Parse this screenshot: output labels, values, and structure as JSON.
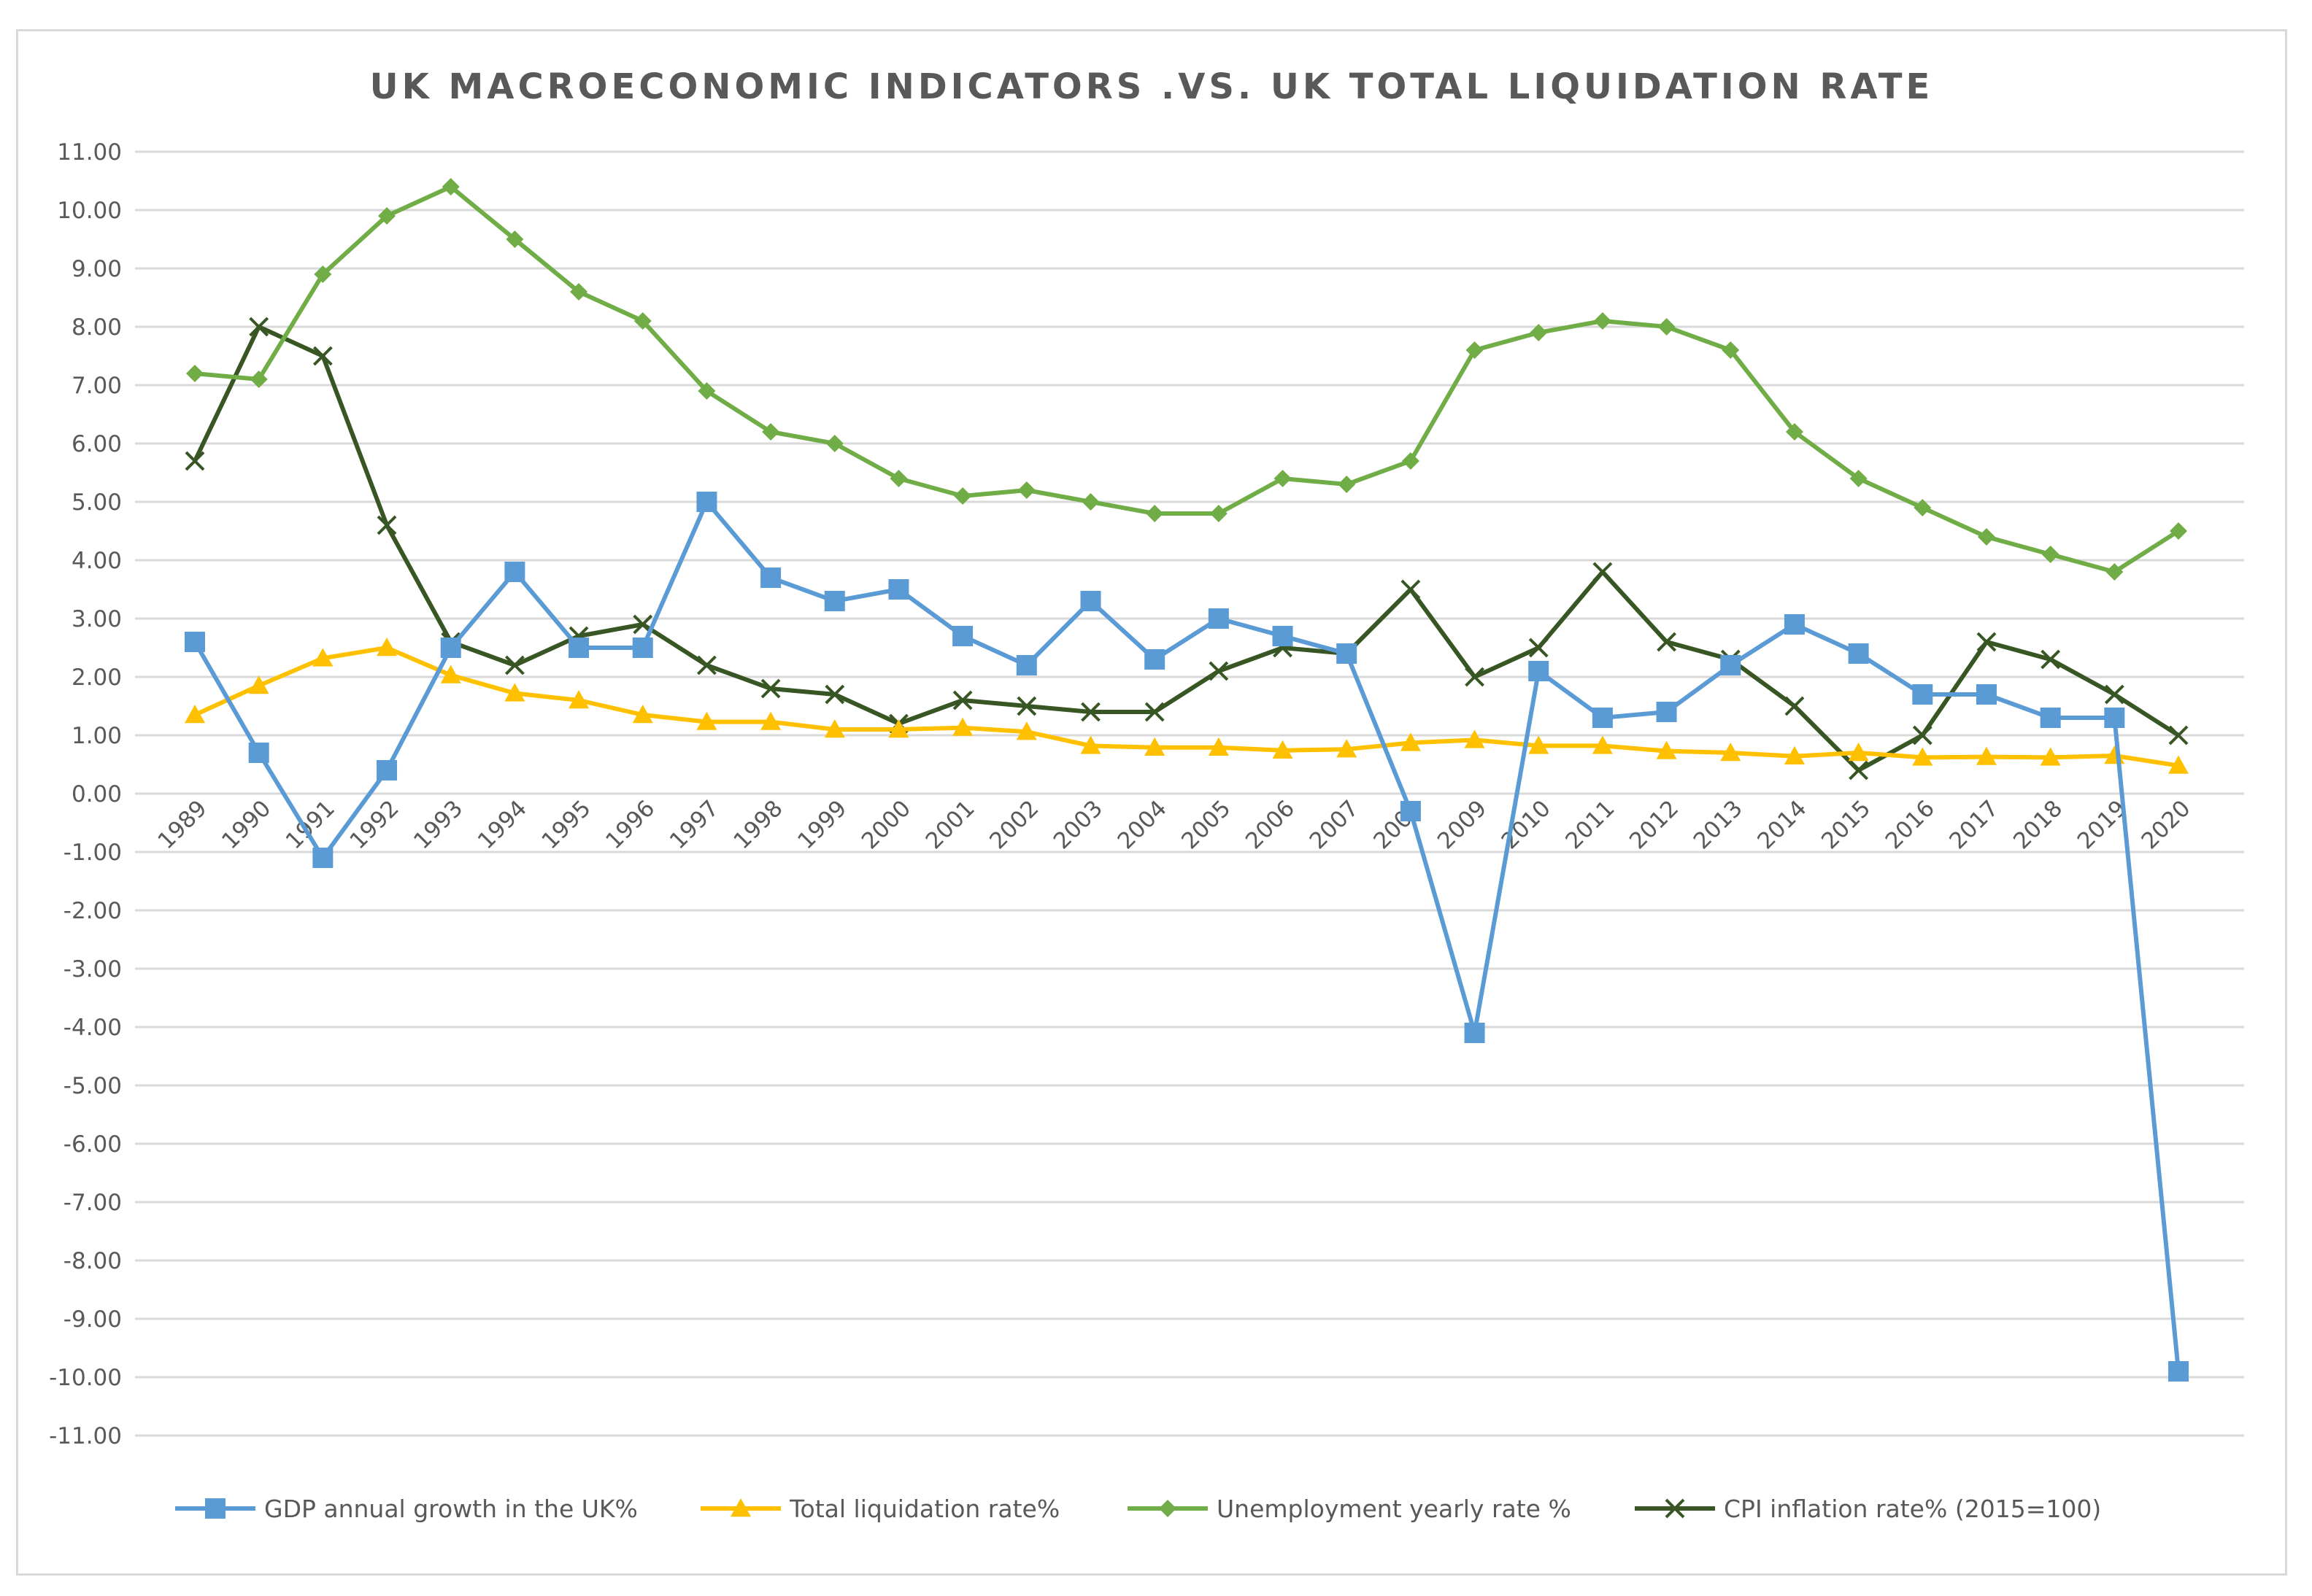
{
  "chart_data": {
    "type": "line",
    "title": "UK MACROECONOMIC INDICATORS .VS. UK TOTAL LIQUIDATION RATE",
    "xlabel": "",
    "ylabel": "",
    "ylim": [
      -11,
      11
    ],
    "y_ticks": [
      11,
      10,
      9,
      8,
      7,
      6,
      5,
      4,
      3,
      2,
      1,
      0,
      -1,
      -2,
      -3,
      -4,
      -5,
      -6,
      -7,
      -8,
      -9,
      -10,
      -11
    ],
    "y_tick_labels": [
      "11.00",
      "10.00",
      "9.00",
      "8.00",
      "7.00",
      "6.00",
      "5.00",
      "4.00",
      "3.00",
      "2.00",
      "1.00",
      "0.00",
      "-1.00",
      "-2.00",
      "-3.00",
      "-4.00",
      "-5.00",
      "-6.00",
      "-7.00",
      "-8.00",
      "-9.00",
      "-10.00",
      "-11.00"
    ],
    "grid": true,
    "legend_position": "bottom",
    "categories": [
      "1989",
      "1990",
      "1991",
      "1992",
      "1993",
      "1994",
      "1995",
      "1996",
      "1997",
      "1998",
      "1999",
      "2000",
      "2001",
      "2002",
      "2003",
      "2004",
      "2005",
      "2006",
      "2007",
      "2008",
      "2009",
      "2010",
      "2011",
      "2012",
      "2013",
      "2014",
      "2015",
      "2016",
      "2017",
      "2018",
      "2019",
      "2020"
    ],
    "series": [
      {
        "name": "GDP annual growth in the UK%",
        "color": "#5b9bd5",
        "marker": "square",
        "values": [
          2.6,
          0.7,
          -1.1,
          0.4,
          2.5,
          3.8,
          2.5,
          2.5,
          5.0,
          3.7,
          3.3,
          3.5,
          2.7,
          2.2,
          3.3,
          2.3,
          3.0,
          2.7,
          2.4,
          -0.3,
          -4.1,
          2.1,
          1.3,
          1.4,
          2.2,
          2.9,
          2.4,
          1.7,
          1.7,
          1.3,
          1.3,
          -9.9
        ]
      },
      {
        "name": "Total liquidation rate%",
        "color": "#ffc000",
        "marker": "triangle",
        "values": [
          1.35,
          1.85,
          2.32,
          2.5,
          2.03,
          1.72,
          1.6,
          1.35,
          1.23,
          1.23,
          1.1,
          1.1,
          1.13,
          1.06,
          0.82,
          0.79,
          0.79,
          0.74,
          0.76,
          0.87,
          0.92,
          0.82,
          0.82,
          0.73,
          0.7,
          0.64,
          0.7,
          0.62,
          0.63,
          0.62,
          0.65,
          0.48
        ]
      },
      {
        "name": "Unemployment yearly rate %",
        "color": "#70ad47",
        "marker": "diamond",
        "values": [
          7.2,
          7.1,
          8.9,
          9.9,
          10.4,
          9.5,
          8.6,
          8.1,
          6.9,
          6.2,
          6.0,
          5.4,
          5.1,
          5.2,
          5.0,
          4.8,
          4.8,
          5.4,
          5.3,
          5.7,
          7.6,
          7.9,
          8.1,
          8.0,
          7.6,
          6.2,
          5.4,
          4.9,
          4.4,
          4.1,
          3.8,
          4.5
        ]
      },
      {
        "name": "CPI inflation rate% (2015=100)",
        "color": "#375623",
        "marker": "x",
        "values": [
          5.7,
          8.0,
          7.5,
          4.6,
          2.6,
          2.2,
          2.7,
          2.9,
          2.2,
          1.8,
          1.7,
          1.2,
          1.6,
          1.5,
          1.4,
          1.4,
          2.1,
          2.5,
          2.4,
          3.5,
          2.0,
          2.5,
          3.8,
          2.6,
          2.3,
          1.5,
          0.4,
          1.0,
          2.6,
          2.3,
          1.7,
          1.0
        ]
      }
    ]
  }
}
